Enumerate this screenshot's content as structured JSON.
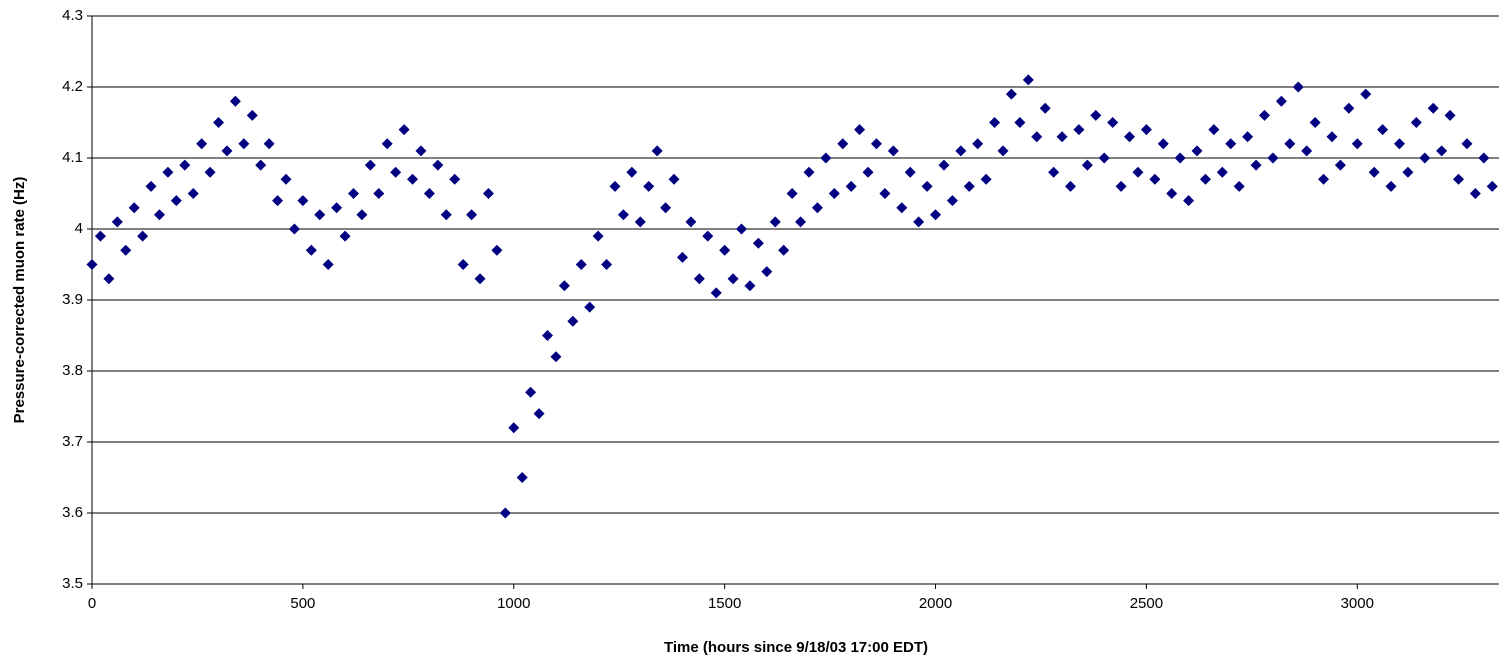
{
  "chart_data": {
    "type": "scatter",
    "x_label": "Time (hours since 9/18/03 17:00 EDT)",
    "y_label": "Pressure-corrected muon rate (Hz)",
    "xlim": [
      0,
      3336
    ],
    "ylim": [
      3.5,
      4.3
    ],
    "xticks": [
      0,
      500,
      1000,
      1500,
      2000,
      2500,
      3000
    ],
    "yticks": [
      3.5,
      3.6,
      3.7,
      3.8,
      3.9,
      4,
      4.1,
      4.2,
      4.3
    ],
    "grid": true,
    "color": "#000080",
    "x": [
      0,
      20,
      40,
      60,
      80,
      100,
      120,
      140,
      160,
      180,
      200,
      220,
      240,
      260,
      280,
      300,
      320,
      340,
      360,
      380,
      400,
      420,
      440,
      460,
      480,
      500,
      520,
      540,
      560,
      580,
      600,
      620,
      640,
      660,
      680,
      700,
      720,
      740,
      760,
      780,
      800,
      820,
      840,
      860,
      880,
      900,
      920,
      940,
      960,
      980,
      1000,
      1020,
      1040,
      1060,
      1080,
      1100,
      1120,
      1140,
      1160,
      1180,
      1200,
      1220,
      1240,
      1260,
      1280,
      1300,
      1320,
      1340,
      1360,
      1380,
      1400,
      1420,
      1440,
      1460,
      1480,
      1500,
      1520,
      1540,
      1560,
      1580,
      1600,
      1620,
      1640,
      1660,
      1680,
      1700,
      1720,
      1740,
      1760,
      1780,
      1800,
      1820,
      1840,
      1860,
      1880,
      1900,
      1920,
      1940,
      1960,
      1980,
      2000,
      2020,
      2040,
      2060,
      2080,
      2100,
      2120,
      2140,
      2160,
      2180,
      2200,
      2220,
      2240,
      2260,
      2280,
      2300,
      2320,
      2340,
      2360,
      2380,
      2400,
      2420,
      2440,
      2460,
      2480,
      2500,
      2520,
      2540,
      2560,
      2580,
      2600,
      2620,
      2640,
      2660,
      2680,
      2700,
      2720,
      2740,
      2760,
      2780,
      2800,
      2820,
      2840,
      2860,
      2880,
      2900,
      2920,
      2940,
      2960,
      2980,
      3000,
      3020,
      3040,
      3060,
      3080,
      3100,
      3120,
      3140,
      3160,
      3180,
      3200,
      3220,
      3240,
      3260,
      3280,
      3300,
      3320
    ],
    "values": [
      3.95,
      3.99,
      3.93,
      4.01,
      3.97,
      4.03,
      3.99,
      4.06,
      4.02,
      4.08,
      4.04,
      4.09,
      4.05,
      4.12,
      4.08,
      4.15,
      4.11,
      4.18,
      4.12,
      4.16,
      4.09,
      4.12,
      4.04,
      4.07,
      4.0,
      4.04,
      3.97,
      4.02,
      3.95,
      4.03,
      3.99,
      4.05,
      4.02,
      4.09,
      4.05,
      4.12,
      4.08,
      4.14,
      4.07,
      4.11,
      4.05,
      4.09,
      4.02,
      4.07,
      3.95,
      4.02,
      3.93,
      4.05,
      3.97,
      3.6,
      3.72,
      3.65,
      3.77,
      3.74,
      3.85,
      3.82,
      3.92,
      3.87,
      3.95,
      3.89,
      3.99,
      3.95,
      4.06,
      4.02,
      4.08,
      4.01,
      4.06,
      4.11,
      4.03,
      4.07,
      3.96,
      4.01,
      3.93,
      3.99,
      3.91,
      3.97,
      3.93,
      4.0,
      3.92,
      3.98,
      3.94,
      4.01,
      3.97,
      4.05,
      4.01,
      4.08,
      4.03,
      4.1,
      4.05,
      4.12,
      4.06,
      4.14,
      4.08,
      4.12,
      4.05,
      4.11,
      4.03,
      4.08,
      4.01,
      4.06,
      4.02,
      4.09,
      4.04,
      4.11,
      4.06,
      4.12,
      4.07,
      4.15,
      4.11,
      4.19,
      4.15,
      4.21,
      4.13,
      4.17,
      4.08,
      4.13,
      4.06,
      4.14,
      4.09,
      4.16,
      4.1,
      4.15,
      4.06,
      4.13,
      4.08,
      4.14,
      4.07,
      4.12,
      4.05,
      4.1,
      4.04,
      4.11,
      4.07,
      4.14,
      4.08,
      4.12,
      4.06,
      4.13,
      4.09,
      4.16,
      4.1,
      4.18,
      4.12,
      4.2,
      4.11,
      4.15,
      4.07,
      4.13,
      4.09,
      4.17,
      4.12,
      4.19,
      4.08,
      4.14,
      4.06,
      4.12,
      4.08,
      4.15,
      4.1,
      4.17,
      4.11,
      4.16,
      4.07,
      4.12,
      4.05,
      4.1,
      4.06
    ]
  }
}
